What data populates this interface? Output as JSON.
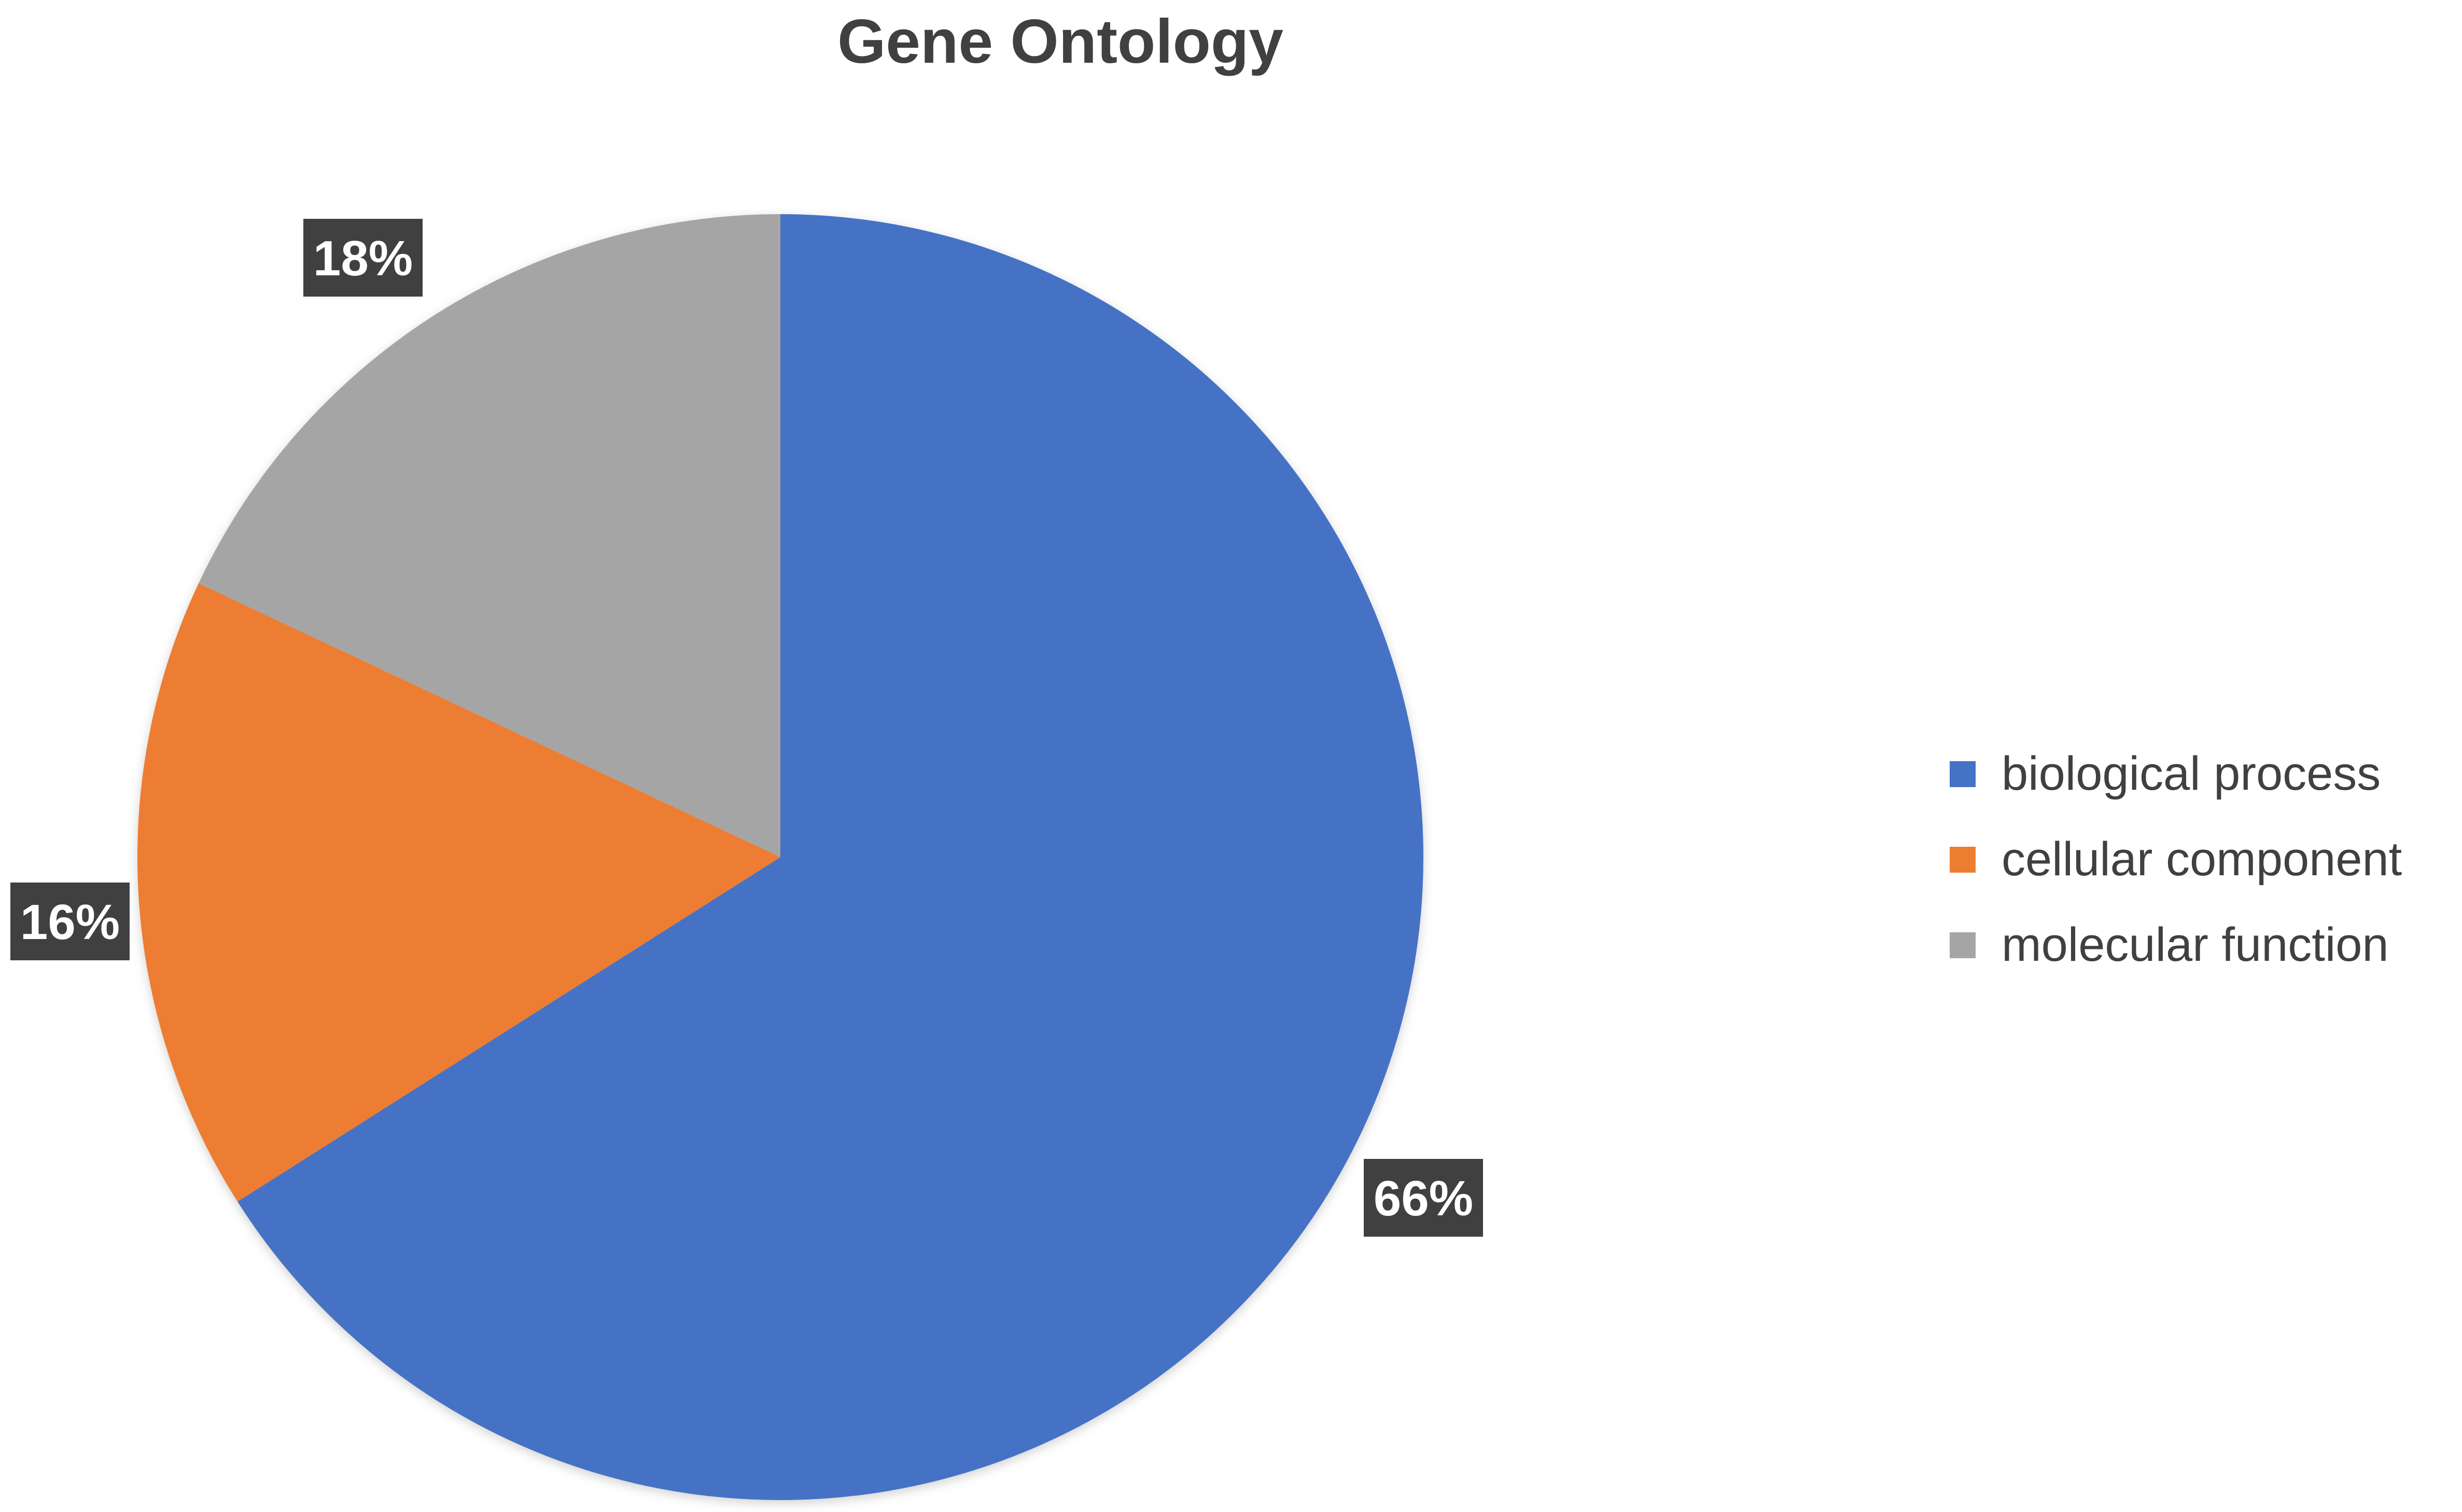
{
  "chart_data": {
    "type": "pie",
    "title": "Gene Ontology",
    "slices": [
      {
        "name": "biological process",
        "value": 66,
        "label": "66%",
        "color": "#4472C4"
      },
      {
        "name": "cellular component",
        "value": 16,
        "label": "16%",
        "color": "#ED7D31"
      },
      {
        "name": "molecular function",
        "value": 18,
        "label": "18%",
        "color": "#A5A5A5"
      }
    ],
    "legend": {
      "position": "right",
      "entries": [
        "biological process",
        "cellular component",
        "molecular function"
      ]
    },
    "data_label_style": {
      "background": "#404040",
      "text_color": "#ffffff"
    },
    "start_angle_degrees": 0,
    "direction": "clockwise"
  }
}
